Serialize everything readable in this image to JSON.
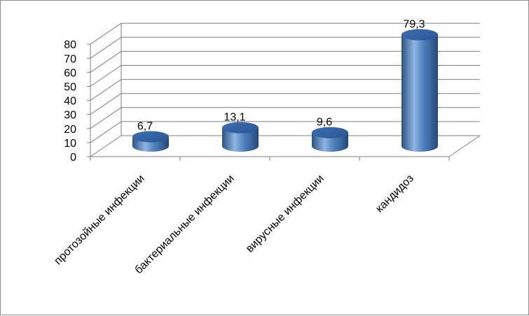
{
  "chart_data": {
    "type": "bar",
    "style": "3d-cylinder",
    "categories": [
      "протозойные инфекции",
      "бактериальные инфекции",
      "вирусные инфекции",
      "кандидоз"
    ],
    "values": [
      6.7,
      13.1,
      9.6,
      79.3
    ],
    "data_labels": [
      "6,7",
      "13,1",
      "9,6",
      "79,3"
    ],
    "ylim": [
      0,
      80
    ],
    "yticks": [
      0,
      10,
      20,
      30,
      40,
      50,
      60,
      70,
      80
    ],
    "grid": true,
    "legend": "none",
    "colors": {
      "bar_light": "#8fb4e3",
      "bar_mid": "#4f81bd",
      "bar_dark": "#2c5282",
      "top": "#3a6bb0",
      "grid": "#7f7f7f"
    }
  }
}
